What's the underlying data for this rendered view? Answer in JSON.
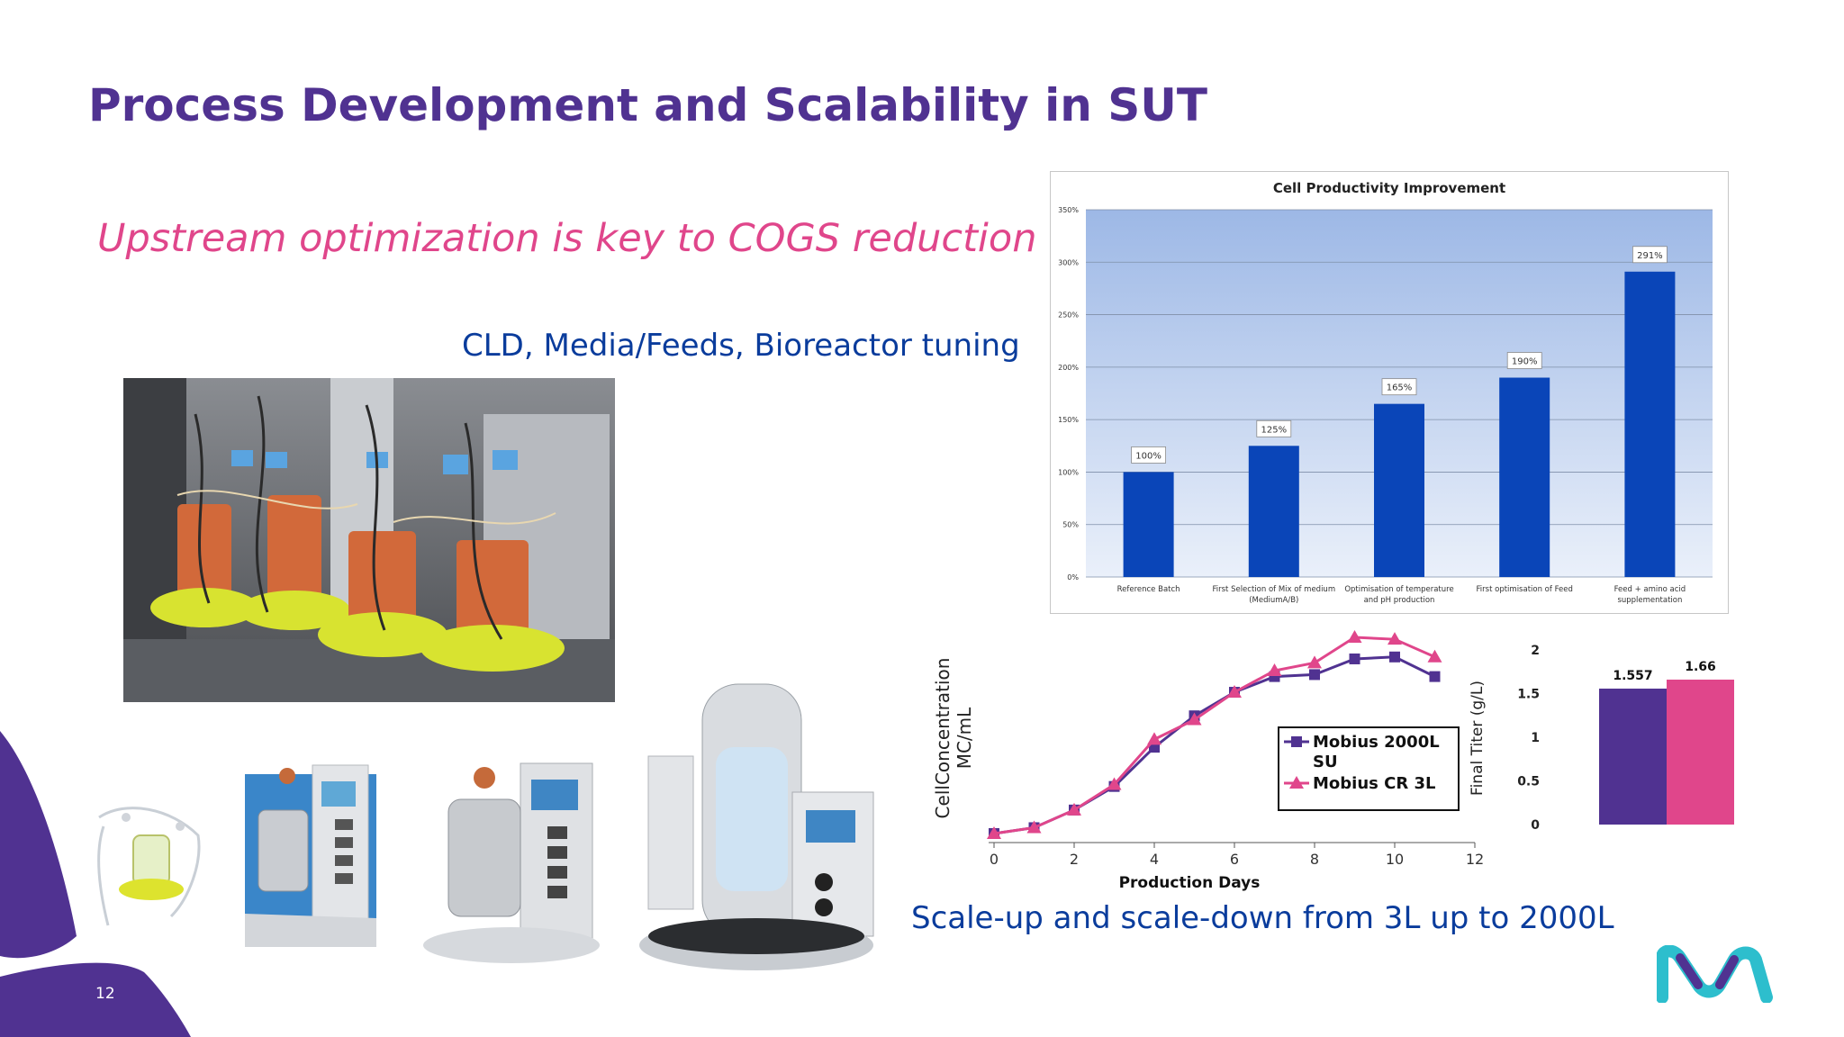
{
  "slide": {
    "title": "Process Development and Scalability in SUT",
    "subtitle": "Upstream optimization is key to COGS reduction",
    "cld_text": "CLD, Media/Feeds, Bioreactor tuning",
    "scale_text": "Scale-up and scale-down from 3L up to 2000L",
    "page_number": "12",
    "colors": {
      "purple": "#503291",
      "pink": "#e0468b",
      "blue": "#0a3c9c",
      "teal": "#2dbecd"
    }
  },
  "chart_data": [
    {
      "type": "bar",
      "title": "Cell Productivity Improvement",
      "categories": [
        "Reference Batch",
        "First Selection of Mix of medium (MediumA/B)",
        "Optimisation of temperature and pH production",
        "First optimisation of Feed",
        "Feed + amino acid supplementation"
      ],
      "category_lines": [
        [
          "Reference Batch"
        ],
        [
          "First Selection of Mix of medium",
          "(MediumA/B)"
        ],
        [
          "Optimisation of  temperature",
          "and pH production"
        ],
        [
          "First optimisation of Feed"
        ],
        [
          "Feed + amino acid",
          "supplementation"
        ]
      ],
      "values": [
        100,
        125,
        165,
        190,
        291
      ],
      "data_labels": [
        "100%",
        "125%",
        "165%",
        "190%",
        "291%"
      ],
      "ylim": [
        0,
        350
      ],
      "yticks": [
        "0%",
        "50%",
        "100%",
        "150%",
        "200%",
        "250%",
        "300%",
        "350%"
      ],
      "grid": true,
      "colors": {
        "bar": "#0a45b8",
        "plot_top": "#9db8e6",
        "plot_bottom": "#eaf0fa"
      }
    },
    {
      "type": "line",
      "xlabel": "Production Days",
      "ylabel_lines": [
        "CellConcentration",
        "MC/mL"
      ],
      "xlim": [
        0,
        12
      ],
      "xticks": [
        "0",
        "2",
        "4",
        "6",
        "8",
        "10",
        "12"
      ],
      "ylim": [
        0,
        1
      ],
      "legend_position": "bottom-right",
      "x": [
        0,
        1,
        2,
        3,
        4,
        5,
        6,
        7,
        8,
        9,
        10,
        11
      ],
      "series": [
        {
          "name": "Mobius 2000L SU",
          "name_lines": [
            "Mobius 2000L",
            "SU"
          ],
          "marker": "square",
          "color": "#503291",
          "values": [
            0.0,
            0.03,
            0.12,
            0.24,
            0.44,
            0.6,
            0.72,
            0.8,
            0.81,
            0.89,
            0.9,
            0.8
          ]
        },
        {
          "name": "Mobius CR 3L",
          "name_lines": [
            "Mobius CR 3L"
          ],
          "marker": "triangle",
          "color": "#e0468b",
          "values": [
            0.0,
            0.03,
            0.12,
            0.25,
            0.48,
            0.58,
            0.72,
            0.83,
            0.87,
            1.0,
            0.99,
            0.9
          ]
        }
      ]
    },
    {
      "type": "bar",
      "ylabel": "Final Titer (g/L)",
      "ylim": [
        0,
        2
      ],
      "yticks": [
        "0",
        "0.5",
        "1",
        "1.5",
        "2"
      ],
      "values": [
        1.557,
        1.66
      ],
      "data_labels": [
        "1.557",
        "1.66"
      ],
      "colors": [
        "#503291",
        "#e0468b"
      ]
    }
  ]
}
